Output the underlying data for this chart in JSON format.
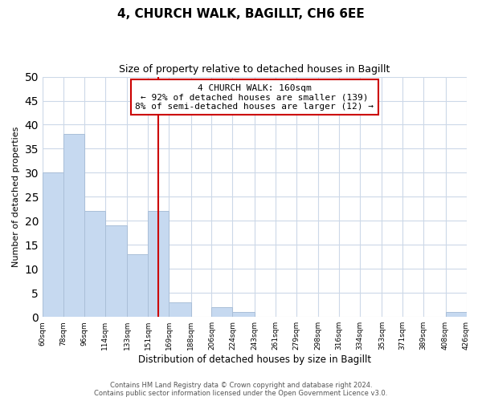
{
  "title": "4, CHURCH WALK, BAGILLT, CH6 6EE",
  "subtitle": "Size of property relative to detached houses in Bagillt",
  "xlabel": "Distribution of detached houses by size in Bagillt",
  "ylabel": "Number of detached properties",
  "bin_edges": [
    60,
    78,
    96,
    114,
    133,
    151,
    169,
    188,
    206,
    224,
    243,
    261,
    279,
    298,
    316,
    334,
    353,
    371,
    389,
    408,
    426
  ],
  "bin_labels": [
    "60sqm",
    "78sqm",
    "96sqm",
    "114sqm",
    "133sqm",
    "151sqm",
    "169sqm",
    "188sqm",
    "206sqm",
    "224sqm",
    "243sqm",
    "261sqm",
    "279sqm",
    "298sqm",
    "316sqm",
    "334sqm",
    "353sqm",
    "371sqm",
    "389sqm",
    "408sqm",
    "426sqm"
  ],
  "counts": [
    30,
    38,
    22,
    19,
    13,
    22,
    3,
    0,
    2,
    1,
    0,
    0,
    0,
    0,
    0,
    0,
    0,
    0,
    0,
    1
  ],
  "bar_color": "#c6d9f0",
  "bar_edge_color": "#aabfd8",
  "property_line_x": 160,
  "property_line_color": "#cc0000",
  "annotation_title": "4 CHURCH WALK: 160sqm",
  "annotation_line1": "← 92% of detached houses are smaller (139)",
  "annotation_line2": "8% of semi-detached houses are larger (12) →",
  "annotation_box_color": "#ffffff",
  "annotation_box_edge_color": "#cc0000",
  "ylim": [
    0,
    50
  ],
  "yticks": [
    0,
    5,
    10,
    15,
    20,
    25,
    30,
    35,
    40,
    45,
    50
  ],
  "footer_line1": "Contains HM Land Registry data © Crown copyright and database right 2024.",
  "footer_line2": "Contains public sector information licensed under the Open Government Licence v3.0.",
  "background_color": "#ffffff",
  "grid_color": "#ccd8e8"
}
